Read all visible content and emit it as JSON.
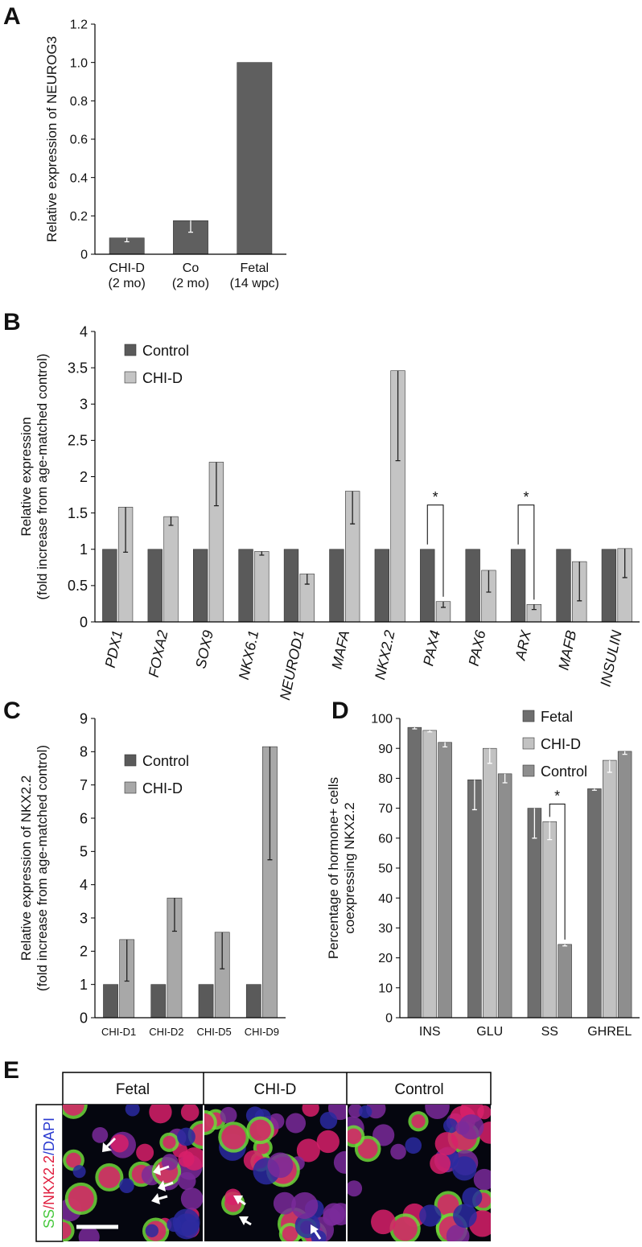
{
  "chart_data": [
    {
      "type": "bar",
      "panel": "A",
      "ylabel": "Relative expression of NEUROG3",
      "categories": [
        "CHI-D\n(2 mo)",
        "Co\n(2 mo)",
        "Fetal\n(14 wpc)"
      ],
      "series": [
        {
          "color": "#5f5f5f",
          "values": [
            0.085,
            0.175,
            1.0
          ],
          "errors": [
            0.02,
            0.06,
            null
          ]
        }
      ],
      "error_color": "#ffffff",
      "ylim": [
        0,
        1.2
      ],
      "yticks": [
        0,
        0.2,
        0.4,
        0.6,
        0.8,
        {
          "value": 1,
          "label": "1.0"
        },
        1.2
      ]
    },
    {
      "type": "bar",
      "panel": "B",
      "ylabel": "Relative expression\n(fold increase from age-matched control)",
      "categories": [
        "PDX1",
        "FOXA2",
        "SOX9",
        "NKX6.1",
        "NEUROD1",
        "MAFA",
        "NKX2.2",
        "PAX4",
        "PAX6",
        "ARX",
        "MAFB",
        "INSULIN"
      ],
      "series": [
        {
          "name": "Control",
          "color": "#5a5a5a",
          "values": [
            1,
            1,
            1,
            1,
            1,
            1,
            1,
            1,
            1,
            1,
            1,
            1
          ],
          "errors": [
            null,
            null,
            null,
            null,
            null,
            null,
            null,
            null,
            null,
            null,
            null,
            null
          ]
        },
        {
          "name": "CHI-D",
          "color": "#c4c4c4",
          "values": [
            1.58,
            1.45,
            2.2,
            0.97,
            0.66,
            1.8,
            3.46,
            0.28,
            0.71,
            0.24,
            0.83,
            1.01
          ],
          "errors": [
            0.62,
            0.12,
            0.6,
            0.05,
            0.14,
            0.45,
            1.24,
            0.08,
            0.3,
            0.07,
            0.54,
            0.4
          ]
        }
      ],
      "error_color": "#222222",
      "legend": "upper left",
      "significance": [
        {
          "text": "*",
          "category": "PAX4",
          "series": [
            "Control",
            "CHI-D"
          ]
        },
        {
          "text": "*",
          "category": "ARX",
          "series": [
            "Control",
            "CHI-D"
          ]
        }
      ],
      "ylim": [
        0,
        4
      ],
      "yticks": [
        0,
        0.5,
        1,
        1.5,
        2,
        2.5,
        3,
        3.5,
        4
      ]
    },
    {
      "type": "bar",
      "panel": "C",
      "ylabel": "Relative expression of NKX2.2\n(fold increase from age-matched control)",
      "categories": [
        "CHI-D1",
        "CHI-D2",
        "CHI-D5",
        "CHI-D9"
      ],
      "series": [
        {
          "name": "Control",
          "color": "#5a5a5a",
          "values": [
            1,
            1,
            1,
            1
          ],
          "errors": [
            null,
            null,
            null,
            null
          ]
        },
        {
          "name": "CHI-D",
          "color": "#a8a8a8",
          "values": [
            2.35,
            3.6,
            2.57,
            8.15
          ],
          "errors": [
            1.25,
            1.0,
            1.1,
            3.4
          ]
        }
      ],
      "error_color": "#222222",
      "legend": "upper left",
      "ylim": [
        0,
        9
      ],
      "yticks": [
        0,
        1,
        2,
        3,
        4,
        5,
        6,
        7,
        8,
        9
      ]
    },
    {
      "type": "bar",
      "panel": "D",
      "ylabel": "Percentage of hormone+ cells\ncoexpressing NKX2.2",
      "categories": [
        "INS",
        "GLU",
        "SS",
        "GHREL"
      ],
      "series": [
        {
          "name": "Fetal",
          "color": "#6e6e6e",
          "values": [
            97,
            79.5,
            70,
            76.5
          ],
          "errors": [
            0.5,
            10,
            10,
            0.5
          ]
        },
        {
          "name": "CHI-D",
          "color": "#c2c2c2",
          "values": [
            96,
            90,
            65.5,
            86
          ],
          "errors": [
            0.5,
            5,
            6,
            4
          ]
        },
        {
          "name": "Control",
          "color": "#8e8e8e",
          "values": [
            92,
            81.5,
            24.5,
            89
          ],
          "errors": [
            1.5,
            3,
            0.5,
            1
          ]
        }
      ],
      "error_color": "#ffffff",
      "legend": "outside upper right",
      "significance": [
        {
          "text": "*",
          "category": "SS",
          "series": [
            "CHI-D",
            "Control"
          ]
        }
      ],
      "ylim": [
        0,
        100
      ],
      "yticks": [
        0,
        10,
        20,
        30,
        40,
        50,
        60,
        70,
        80,
        90,
        100
      ]
    }
  ],
  "panel_e": {
    "letter": "E",
    "columns": [
      "Fetal",
      "CHI-D",
      "Control"
    ],
    "stain": [
      {
        "text": "SS",
        "color": "#46c83c"
      },
      {
        "text": "/NKX2.2",
        "color": "#e02040"
      },
      {
        "text": "/DAPI",
        "color": "#2a3ad0"
      }
    ]
  }
}
